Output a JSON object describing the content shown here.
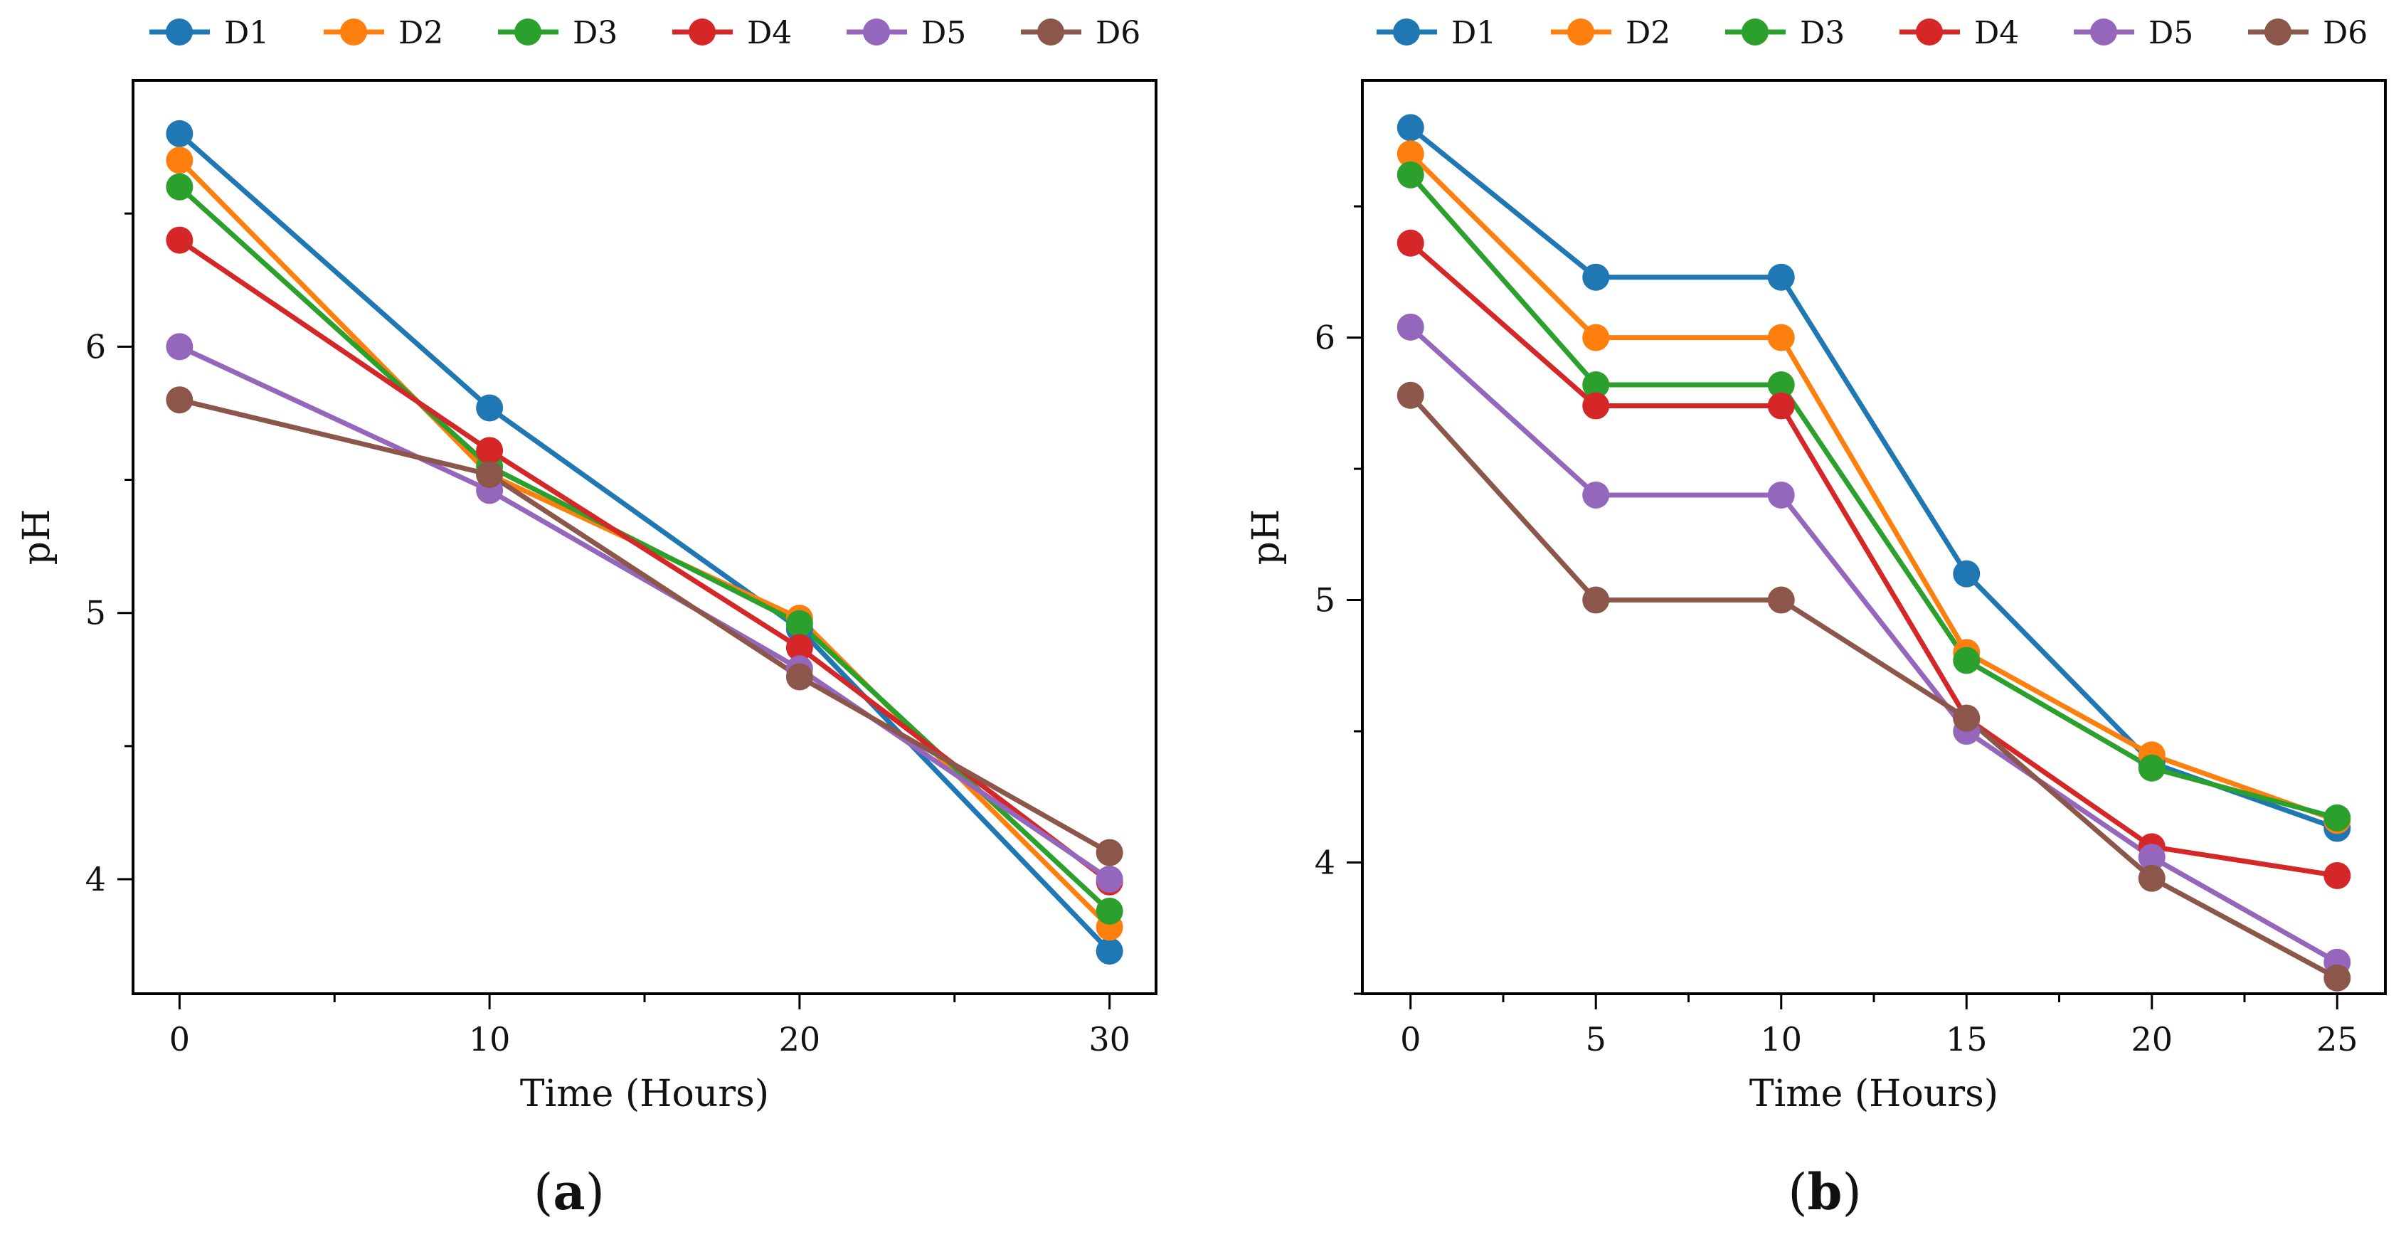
{
  "chart_data": [
    {
      "type": "line",
      "panel_label": "a",
      "xlabel": "Time (Hours)",
      "ylabel": "pH",
      "xlim": [
        -1.5,
        31.5
      ],
      "ylim": [
        3.57,
        7.0
      ],
      "xticks": [
        0,
        10,
        20,
        30
      ],
      "xticks_minor": [
        5,
        15,
        25
      ],
      "yticks": [
        4,
        5,
        6
      ],
      "yticks_minor": [
        4.5,
        5.5,
        6.5
      ],
      "legend_position": "top",
      "x": [
        0,
        10,
        20,
        30
      ],
      "series": [
        {
          "name": "D1",
          "color": "#1f77b4",
          "values": [
            6.8,
            5.77,
            4.94,
            3.73
          ]
        },
        {
          "name": "D2",
          "color": "#ff7f0e",
          "values": [
            6.7,
            5.52,
            4.98,
            3.82
          ]
        },
        {
          "name": "D3",
          "color": "#2ca02c",
          "values": [
            6.6,
            5.55,
            4.96,
            3.88
          ]
        },
        {
          "name": "D4",
          "color": "#d62728",
          "values": [
            6.4,
            5.61,
            4.87,
            3.99
          ]
        },
        {
          "name": "D5",
          "color": "#9467bd",
          "values": [
            6.0,
            5.46,
            4.79,
            4.0
          ]
        },
        {
          "name": "D6",
          "color": "#8c564b",
          "values": [
            5.8,
            5.52,
            4.76,
            4.1
          ]
        }
      ]
    },
    {
      "type": "line",
      "panel_label": "b",
      "xlabel": "Time (Hours)",
      "ylabel": "pH",
      "xlim": [
        -1.3,
        26.3
      ],
      "ylim": [
        3.5,
        6.98
      ],
      "xticks": [
        0,
        5,
        10,
        15,
        20,
        25
      ],
      "xticks_minor": [
        2.5,
        7.5,
        12.5,
        17.5,
        22.5
      ],
      "yticks": [
        4,
        5,
        6
      ],
      "yticks_minor": [
        3.5,
        4.5,
        5.5,
        6.5
      ],
      "legend_position": "top",
      "x": [
        0,
        5,
        10,
        15,
        20,
        25
      ],
      "series": [
        {
          "name": "D1",
          "color": "#1f77b4",
          "values": [
            6.8,
            6.23,
            6.23,
            5.1,
            4.38,
            4.13
          ]
        },
        {
          "name": "D2",
          "color": "#ff7f0e",
          "values": [
            6.7,
            6.0,
            6.0,
            4.8,
            4.41,
            4.16
          ]
        },
        {
          "name": "D3",
          "color": "#2ca02c",
          "values": [
            6.62,
            5.82,
            5.82,
            4.77,
            4.36,
            4.17
          ]
        },
        {
          "name": "D4",
          "color": "#d62728",
          "values": [
            6.36,
            5.74,
            5.74,
            4.55,
            4.06,
            3.95
          ]
        },
        {
          "name": "D5",
          "color": "#9467bd",
          "values": [
            6.04,
            5.4,
            5.4,
            4.5,
            4.02,
            3.62
          ]
        },
        {
          "name": "D6",
          "color": "#8c564b",
          "values": [
            5.78,
            5.0,
            5.0,
            4.55,
            3.94,
            3.56
          ]
        }
      ]
    }
  ]
}
